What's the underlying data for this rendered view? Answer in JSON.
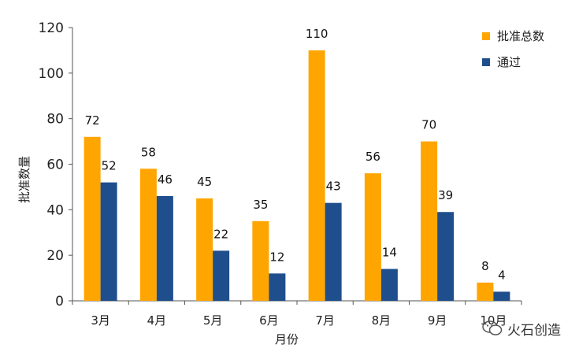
{
  "chart_data": {
    "type": "bar",
    "categories": [
      "3月",
      "4月",
      "5月",
      "6月",
      "7月",
      "8月",
      "9月",
      "10月"
    ],
    "series": [
      {
        "name": "批准总数",
        "color": "#FFA500",
        "values": [
          72,
          58,
          45,
          35,
          110,
          56,
          70,
          8
        ]
      },
      {
        "name": "通过",
        "color": "#1F4E8C",
        "values": [
          52,
          46,
          22,
          12,
          43,
          14,
          39,
          4
        ]
      }
    ],
    "xlabel": "月份",
    "ylabel": "批准数量",
    "ylim": [
      0,
      120
    ],
    "yticks": [
      0,
      20,
      40,
      60,
      80,
      100,
      120
    ],
    "grid": false,
    "legend_position": "top-right"
  },
  "watermark": {
    "text": "火石创造",
    "icon": "wechat-bubble-icon"
  }
}
